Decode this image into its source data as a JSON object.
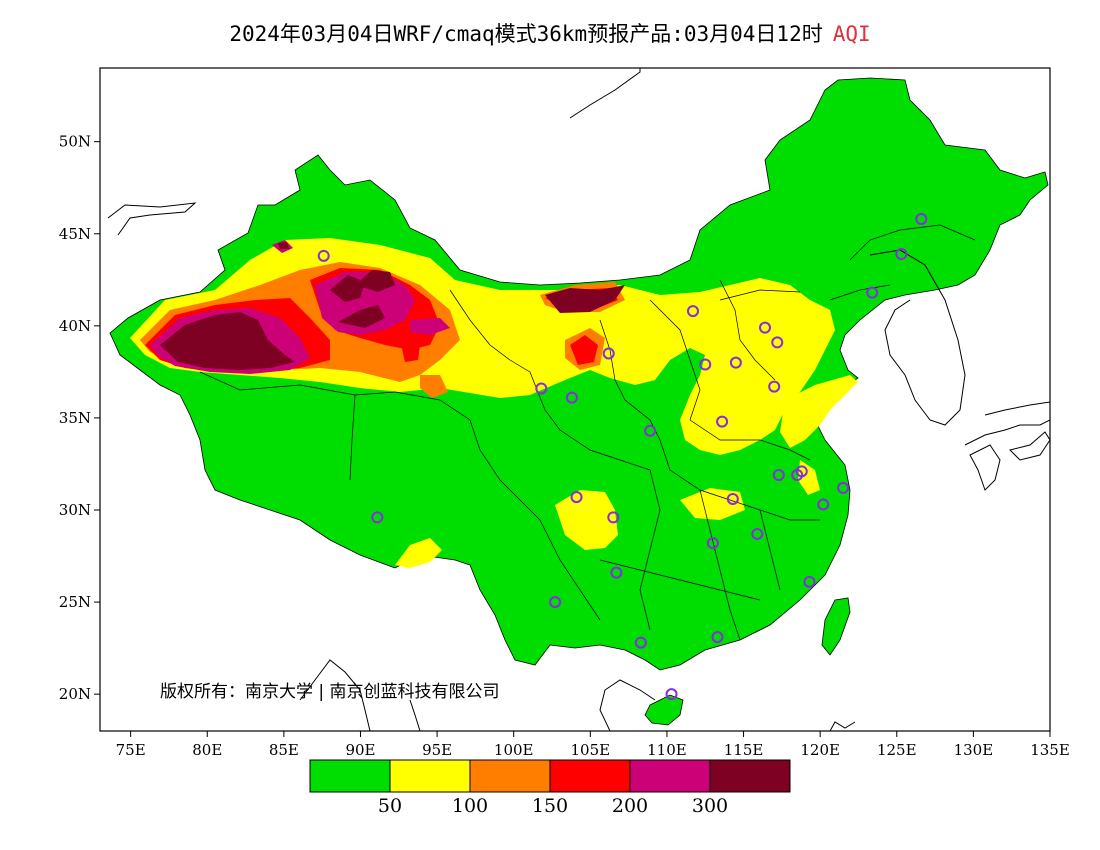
{
  "title": {
    "main": "2024年03月04日WRF/cmaq模式36km预报产品:03月04日12时",
    "variable": "AQI"
  },
  "map": {
    "lon_ticks": [
      "75E",
      "80E",
      "85E",
      "90E",
      "95E",
      "100E",
      "105E",
      "110E",
      "115E",
      "120E",
      "125E",
      "130E",
      "135E"
    ],
    "lat_ticks": [
      "50N",
      "45N",
      "40N",
      "35N",
      "30N",
      "25N",
      "20N"
    ],
    "lon_range": [
      73,
      135
    ],
    "lat_range": [
      18,
      54
    ],
    "copyright": "版权所有：南京大学 | 南京创蓝科技有限公司"
  },
  "legend": {
    "colors": [
      "#00dd00",
      "#ffff00",
      "#ff7e00",
      "#ff0000",
      "#cc0077",
      "#7e0023"
    ],
    "labels": [
      "50",
      "100",
      "150",
      "200",
      "300"
    ]
  },
  "colors": {
    "good": "#00dd00",
    "moderate": "#ffff00",
    "usg": "#ff7e00",
    "unhealthy": "#ff0000",
    "very_unhealthy": "#cc0077",
    "hazardous": "#7e0023",
    "station_marker": "#8a2be2"
  },
  "stations": [
    {
      "lon": 87.6,
      "lat": 43.8
    },
    {
      "lon": 91.1,
      "lat": 29.6
    },
    {
      "lon": 101.8,
      "lat": 36.6
    },
    {
      "lon": 103.8,
      "lat": 36.1
    },
    {
      "lon": 106.2,
      "lat": 38.5
    },
    {
      "lon": 111.7,
      "lat": 40.8
    },
    {
      "lon": 112.5,
      "lat": 37.9
    },
    {
      "lon": 114.5,
      "lat": 38.0
    },
    {
      "lon": 116.4,
      "lat": 39.9
    },
    {
      "lon": 117.2,
      "lat": 39.1
    },
    {
      "lon": 117.0,
      "lat": 36.7
    },
    {
      "lon": 113.6,
      "lat": 34.8
    },
    {
      "lon": 108.9,
      "lat": 34.3
    },
    {
      "lon": 104.1,
      "lat": 30.7
    },
    {
      "lon": 106.5,
      "lat": 29.6
    },
    {
      "lon": 114.3,
      "lat": 30.6
    },
    {
      "lon": 117.3,
      "lat": 31.9
    },
    {
      "lon": 118.8,
      "lat": 32.1
    },
    {
      "lon": 121.5,
      "lat": 31.2
    },
    {
      "lon": 120.2,
      "lat": 30.3
    },
    {
      "lon": 115.9,
      "lat": 28.7
    },
    {
      "lon": 113.0,
      "lat": 28.2
    },
    {
      "lon": 106.7,
      "lat": 26.6
    },
    {
      "lon": 102.7,
      "lat": 25.0
    },
    {
      "lon": 119.3,
      "lat": 26.1
    },
    {
      "lon": 113.3,
      "lat": 23.1
    },
    {
      "lon": 108.3,
      "lat": 22.8
    },
    {
      "lon": 110.3,
      "lat": 20.0
    },
    {
      "lon": 123.4,
      "lat": 41.8
    },
    {
      "lon": 125.3,
      "lat": 43.9
    },
    {
      "lon": 126.6,
      "lat": 45.8
    },
    {
      "lon": 118.5,
      "lat": 31.9
    }
  ]
}
